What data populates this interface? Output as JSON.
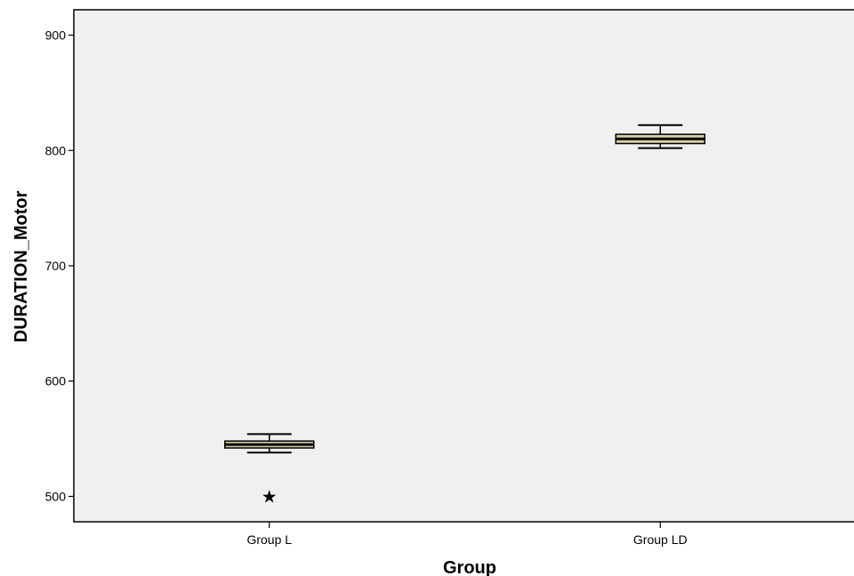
{
  "chart_data": {
    "type": "boxplot",
    "title": "",
    "xlabel": "Group",
    "ylabel": "DURATION_Motor",
    "ylim": [
      478,
      922
    ],
    "yticks": [
      500,
      600,
      700,
      800,
      900
    ],
    "ytick_labels": [
      "500",
      "600",
      "700",
      "800",
      "900"
    ],
    "grid": false,
    "categories": [
      "Group L",
      "Group LD"
    ],
    "boxes": [
      {
        "category": "Group L",
        "min": 538,
        "q1": 542,
        "median": 545,
        "q3": 548,
        "max": 554,
        "outliers": [
          500
        ],
        "outlier_symbol": "★"
      },
      {
        "category": "Group LD",
        "min": 802,
        "q1": 806,
        "median": 810,
        "q3": 814,
        "max": 822,
        "outliers": [],
        "outlier_symbol": "★"
      }
    ],
    "colors": {
      "plot_background": "#f0f0f0",
      "box_fill": "#d8cfa8",
      "box_stroke": "#000000",
      "axis": "#000000"
    }
  }
}
